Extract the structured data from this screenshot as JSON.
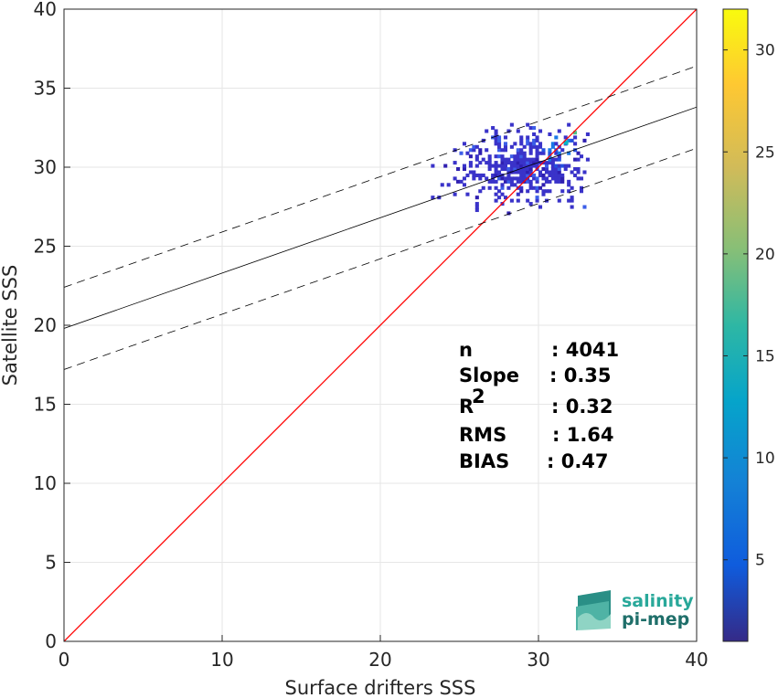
{
  "chart_data": {
    "type": "heatmap",
    "xlabel": "Surface drifters SSS",
    "ylabel": "Satellite SSS",
    "xlim": [
      0,
      40
    ],
    "ylim": [
      0,
      40
    ],
    "xticks": [
      "0",
      "10",
      "20",
      "30",
      "40"
    ],
    "yticks": [
      "0",
      "5",
      "10",
      "15",
      "20",
      "25",
      "30",
      "35",
      "40"
    ],
    "grid": true,
    "colorbar": {
      "range": [
        1,
        32
      ],
      "ticks": [
        "5",
        "10",
        "15",
        "20",
        "25",
        "30"
      ],
      "colormap": "parula"
    },
    "lines": {
      "identity": {
        "slope": 1,
        "intercept": 0,
        "color": "#ff0000"
      },
      "fit": {
        "slope": 0.35,
        "intercept": 19.8,
        "color": "#000000"
      },
      "fit_upper": {
        "slope": 0.35,
        "intercept": 22.4,
        "style": "dashed"
      },
      "fit_lower": {
        "slope": 0.35,
        "intercept": 17.2,
        "style": "dashed"
      }
    },
    "stats": [
      {
        "label": "n",
        "value": ": 4041"
      },
      {
        "label": "Slope",
        "value": ": 0.35"
      },
      {
        "label": "R",
        "sup": "2",
        "value": ": 0.32"
      },
      {
        "label": "RMS",
        "value": ": 1.64"
      },
      {
        "label": "BIAS",
        "value": ": 0.47"
      }
    ],
    "density_cloud": {
      "x_range": [
        22.8,
        33.0
      ],
      "y_range": [
        27.0,
        32.6
      ],
      "peak": {
        "x": 31.5,
        "y": 31.5,
        "count": 14
      }
    }
  },
  "logo": {
    "line1": "salinity",
    "line2": "pi-mep"
  }
}
